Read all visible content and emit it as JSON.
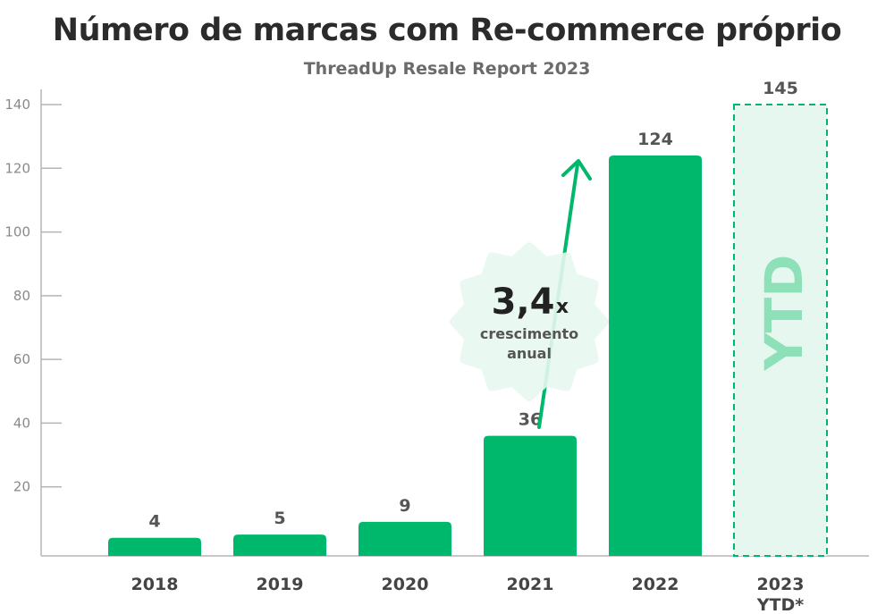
{
  "chart_data": {
    "type": "bar",
    "title": "Número de marcas com Re-commerce próprio",
    "subtitle": "ThreadUp Resale Report 2023",
    "categories": [
      "2018",
      "2019",
      "2020",
      "2021",
      "2022",
      "2023 YTD*"
    ],
    "values": [
      4,
      5,
      9,
      36,
      124,
      145
    ],
    "data_labels": [
      "4",
      "5",
      "9",
      "36",
      "124",
      "145"
    ],
    "yticks": [
      20,
      40,
      60,
      80,
      100,
      120,
      140
    ],
    "ylim": [
      0,
      140
    ],
    "xlabel": "",
    "ylabel": "",
    "grid": false,
    "bar_color": "#00b86b",
    "projected_bar": {
      "category": "2023 YTD*",
      "style": "dashed",
      "fill": "#e6f7ef",
      "label": "YTD",
      "label_color": "#8ee0b8"
    },
    "annotation": {
      "multiplier": "3,4",
      "unit": "x",
      "line1": "crescimento",
      "line2": "anual",
      "badge_color": "#e8f8f1",
      "arrow_color": "#00b86b"
    }
  }
}
